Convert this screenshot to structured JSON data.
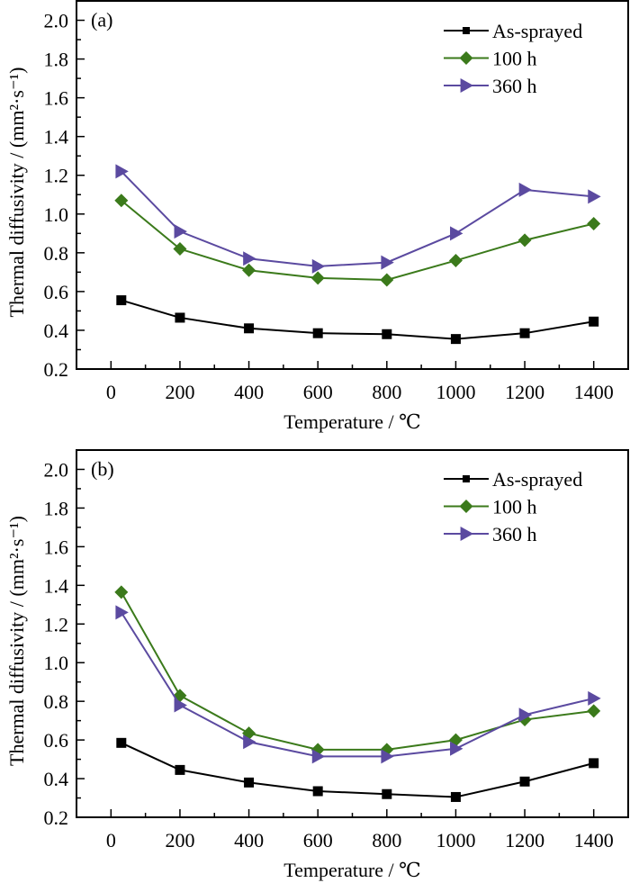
{
  "chart_data": [
    {
      "type": "line",
      "panel_label": "(a)",
      "xlabel": "Temperature / ℃",
      "ylabel": "Thermal diffusivity / (mm²·s⁻¹)",
      "xlim": [
        -100,
        1500
      ],
      "ylim": [
        0.2,
        2.1
      ],
      "x_ticks": [
        0,
        200,
        400,
        600,
        800,
        1000,
        1200,
        1400
      ],
      "x_tick_labels": [
        "0",
        "200",
        "400",
        "600",
        "800",
        "1000",
        "1200",
        "1400"
      ],
      "y_ticks": [
        0.2,
        0.4,
        0.6,
        0.8,
        1.0,
        1.2,
        1.4,
        1.6,
        1.8,
        2.0
      ],
      "y_tick_labels": [
        "0.2",
        "0.4",
        "0.6",
        "0.8",
        "1.0",
        "1.2",
        "1.4",
        "1.6",
        "1.8",
        "2.0"
      ],
      "grid": false,
      "legend_position": "top-right",
      "x": [
        30,
        200,
        400,
        600,
        800,
        1000,
        1200,
        1400
      ],
      "series": [
        {
          "name": "As-sprayed",
          "color": "#000000",
          "marker": "square",
          "values": [
            0.555,
            0.465,
            0.41,
            0.385,
            0.38,
            0.355,
            0.385,
            0.445
          ]
        },
        {
          "name": "100 h",
          "color": "#3b7a1b",
          "marker": "diamond",
          "values": [
            1.07,
            0.82,
            0.71,
            0.67,
            0.66,
            0.76,
            0.865,
            0.95
          ]
        },
        {
          "name": "360 h",
          "color": "#5b4aa0",
          "marker": "triangle-right",
          "values": [
            1.22,
            0.91,
            0.77,
            0.73,
            0.75,
            0.9,
            1.125,
            1.09
          ]
        }
      ]
    },
    {
      "type": "line",
      "panel_label": "(b)",
      "xlabel": "Temperature / ℃",
      "ylabel": "Thermal diffusivity / (mm²·s⁻¹)",
      "xlim": [
        -100,
        1500
      ],
      "ylim": [
        0.2,
        2.1
      ],
      "x_ticks": [
        0,
        200,
        400,
        600,
        800,
        1000,
        1200,
        1400
      ],
      "x_tick_labels": [
        "0",
        "200",
        "400",
        "600",
        "800",
        "1000",
        "1200",
        "1400"
      ],
      "y_ticks": [
        0.2,
        0.4,
        0.6,
        0.8,
        1.0,
        1.2,
        1.4,
        1.6,
        1.8,
        2.0
      ],
      "y_tick_labels": [
        "0.2",
        "0.4",
        "0.6",
        "0.8",
        "1.0",
        "1.2",
        "1.4",
        "1.6",
        "1.8",
        "2.0"
      ],
      "grid": false,
      "legend_position": "top-right",
      "x": [
        30,
        200,
        400,
        600,
        800,
        1000,
        1200,
        1400
      ],
      "series": [
        {
          "name": "As-sprayed",
          "color": "#000000",
          "marker": "square",
          "values": [
            0.585,
            0.445,
            0.38,
            0.335,
            0.32,
            0.305,
            0.385,
            0.48
          ]
        },
        {
          "name": "100 h",
          "color": "#3b7a1b",
          "marker": "diamond",
          "values": [
            1.365,
            0.83,
            0.635,
            0.55,
            0.55,
            0.6,
            0.705,
            0.75
          ]
        },
        {
          "name": "360 h",
          "color": "#5b4aa0",
          "marker": "triangle-right",
          "values": [
            1.26,
            0.78,
            0.59,
            0.515,
            0.515,
            0.555,
            0.73,
            0.815
          ]
        }
      ]
    }
  ]
}
